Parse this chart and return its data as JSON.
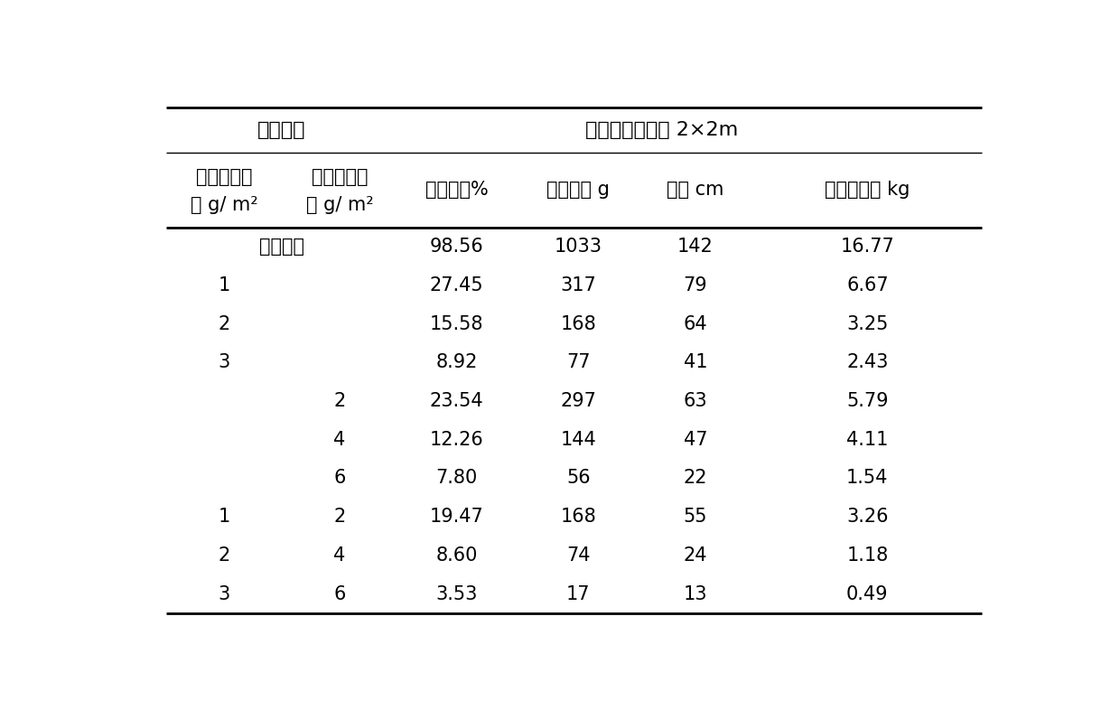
{
  "title_left": "生物替代",
  "title_right": "加拿大一枝黄花 2×2m",
  "col_header_line1": [
    "艾草种植密",
    "芦苇种植密",
    "冠层盖度%",
    "种子产量 g",
    "高度 cm",
    "地上生物量 kg"
  ],
  "col_header_line2": [
    "度 g/ m²",
    "度 g/ m²",
    "",
    "",
    "",
    ""
  ],
  "rows": [
    [
      "空白对照",
      "",
      "98.56",
      "1033",
      "142",
      "16.77"
    ],
    [
      "1",
      "",
      "27.45",
      "317",
      "79",
      "6.67"
    ],
    [
      "2",
      "",
      "15.58",
      "168",
      "64",
      "3.25"
    ],
    [
      "3",
      "",
      "8.92",
      "77",
      "41",
      "2.43"
    ],
    [
      "",
      "2",
      "23.54",
      "297",
      "63",
      "5.79"
    ],
    [
      "",
      "4",
      "12.26",
      "144",
      "47",
      "4.11"
    ],
    [
      "",
      "6",
      "7.80",
      "56",
      "22",
      "1.54"
    ],
    [
      "1",
      "2",
      "19.47",
      "168",
      "55",
      "3.26"
    ],
    [
      "2",
      "4",
      "8.60",
      "74",
      "24",
      "1.18"
    ],
    [
      "3",
      "6",
      "3.53",
      "17",
      "13",
      "0.49"
    ]
  ],
  "background_color": "#ffffff",
  "text_color": "#000000",
  "font_size": 15,
  "title_font_size": 16
}
